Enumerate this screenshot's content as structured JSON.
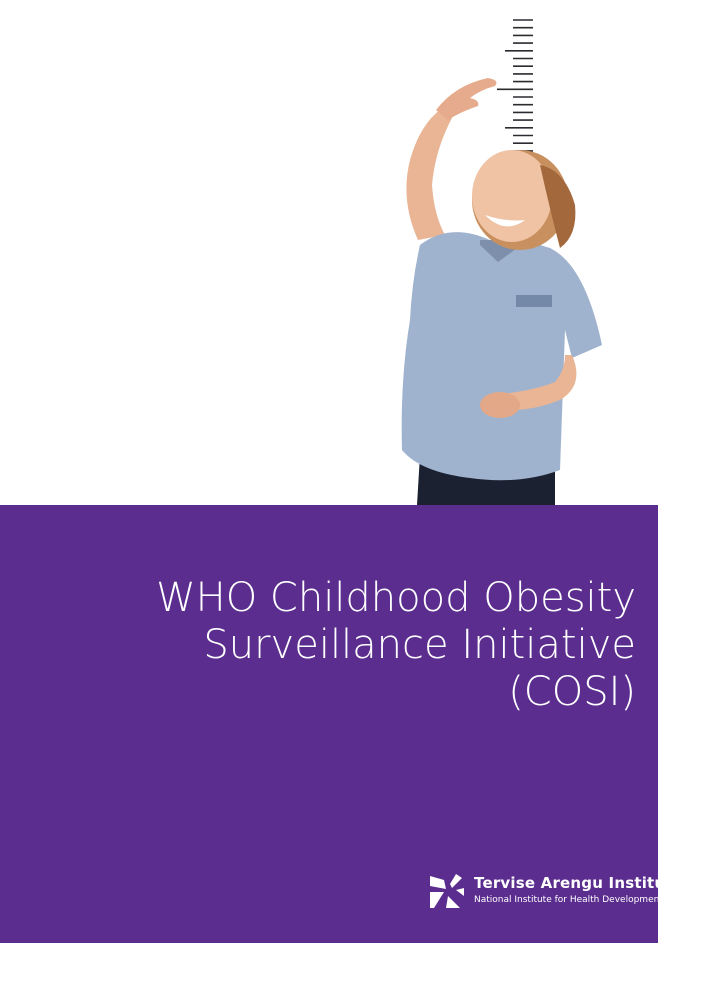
{
  "cover": {
    "title_lines": [
      "WHO Childhood Obesity",
      "Surveillance Initiative",
      "(COSI)"
    ],
    "accent_color": "#5b2d8e"
  },
  "logo": {
    "name": "Tervise Arengu Instituut",
    "subtitle": "National Institute for Health Development",
    "icon": "tai-star-logo-icon"
  },
  "photo": {
    "icon": "child-height-measurement-photo"
  }
}
